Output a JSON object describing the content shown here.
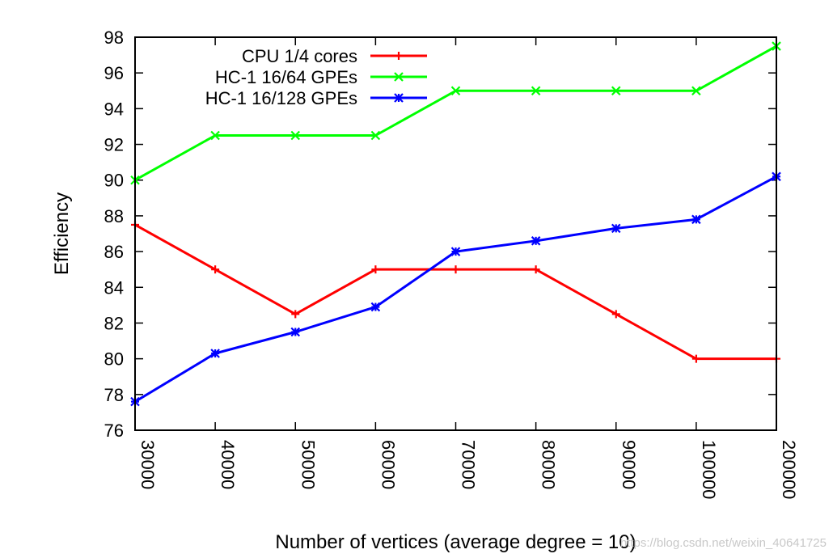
{
  "chart_data": {
    "type": "line",
    "title": "",
    "xlabel": "Number of vertices (average degree = 10)",
    "ylabel": "Efficiency",
    "categories": [
      "30000",
      "40000",
      "50000",
      "60000",
      "70000",
      "80000",
      "90000",
      "100000",
      "200000"
    ],
    "ylim": [
      76,
      98
    ],
    "yticks": [
      76,
      78,
      80,
      82,
      84,
      86,
      88,
      90,
      92,
      94,
      96,
      98
    ],
    "grid": false,
    "legend_position": "top-left",
    "series": [
      {
        "name": "CPU 1/4 cores",
        "color": "#ff0000",
        "marker": "plus",
        "values": [
          87.5,
          85,
          82.5,
          85,
          85,
          85,
          82.5,
          80,
          80
        ]
      },
      {
        "name": "HC-1 16/64 GPEs",
        "color": "#00ff00",
        "marker": "cross",
        "values": [
          90,
          92.5,
          92.5,
          92.5,
          95,
          95,
          95,
          95,
          97.5
        ]
      },
      {
        "name": "HC-1 16/128 GPEs",
        "color": "#0000ff",
        "marker": "star",
        "values": [
          77.6,
          80.3,
          81.5,
          82.9,
          86,
          86.6,
          87.3,
          87.8,
          90.2
        ]
      }
    ]
  },
  "watermark": "https://blog.csdn.net/weixin_40641725"
}
